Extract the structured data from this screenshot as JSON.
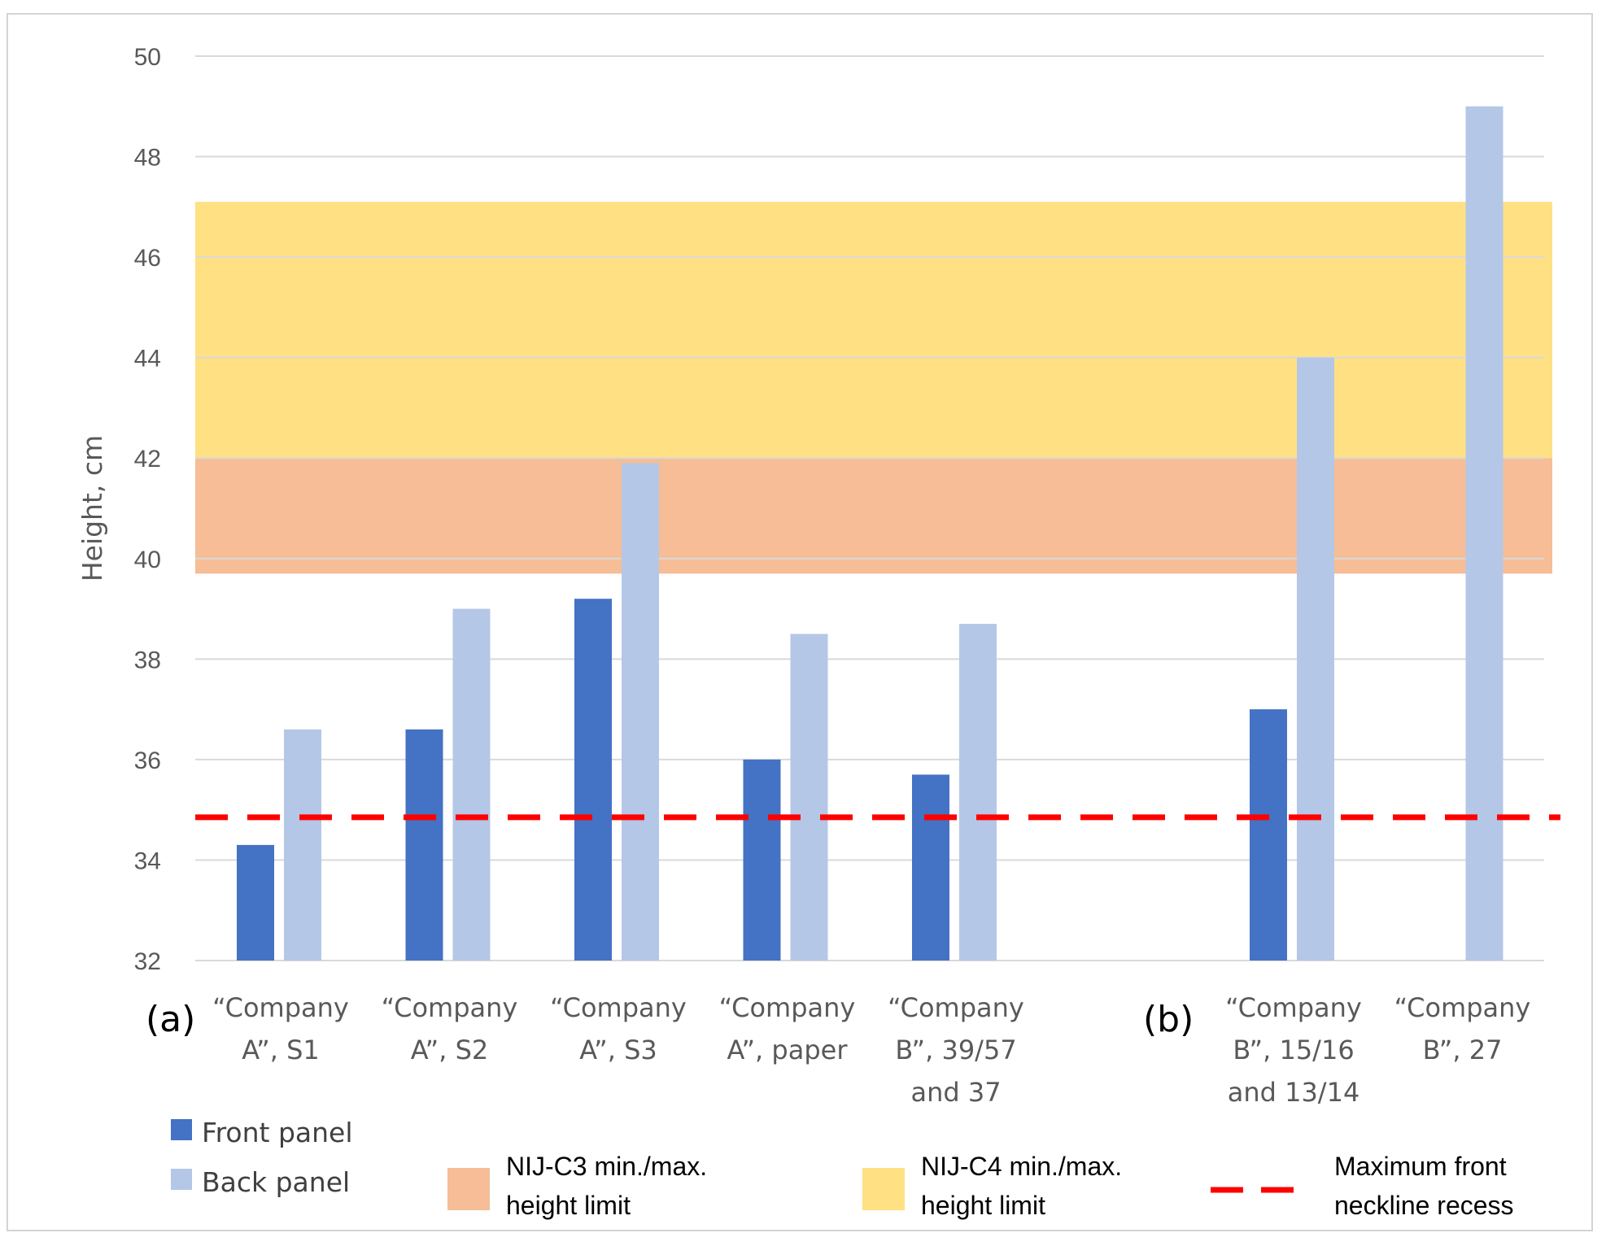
{
  "chart_data": {
    "type": "bar",
    "ylabel": "Height, cm",
    "ylim": [
      32,
      50
    ],
    "yticks": [
      "32",
      "34",
      "36",
      "38",
      "40",
      "42",
      "44",
      "46",
      "48",
      "50"
    ],
    "grid": true,
    "categories": [
      [
        "“Company",
        "A”, S1"
      ],
      [
        "“Company",
        "A”, S2"
      ],
      [
        "“Company",
        "A”, S3"
      ],
      [
        "“Company",
        "A”, paper"
      ],
      [
        "“Company",
        "B”, 39/57",
        "and 37"
      ],
      [],
      [
        "“Company",
        "B”, 15/16",
        "and 13/14"
      ],
      [
        "“Company",
        "B”, 27"
      ]
    ],
    "series": [
      {
        "name": "Front panel",
        "color": "#4472c4",
        "values": [
          34.3,
          36.6,
          39.2,
          36.0,
          35.7,
          null,
          37.0,
          null
        ]
      },
      {
        "name": "Back panel",
        "color": "#b4c7e7",
        "values": [
          36.6,
          39.0,
          41.9,
          38.5,
          38.7,
          null,
          44.0,
          49.0
        ]
      }
    ],
    "bands": [
      {
        "label_lines": [
          "NIJ-C4 min./max.",
          "height limit"
        ],
        "color": "#ffe083",
        "from": 42.0,
        "to": 47.1
      },
      {
        "label_lines": [
          "NIJ-C3 min./max.",
          "height limit"
        ],
        "color": "#f6bd96",
        "from": 39.7,
        "to": 42.0
      }
    ],
    "reference_line": {
      "label_lines": [
        "Maximum front",
        "neckline recess"
      ],
      "value": 34.85,
      "color": "#ff0000",
      "style": "dashed"
    },
    "panel_labels": [
      "(a)",
      "(b)"
    ]
  }
}
